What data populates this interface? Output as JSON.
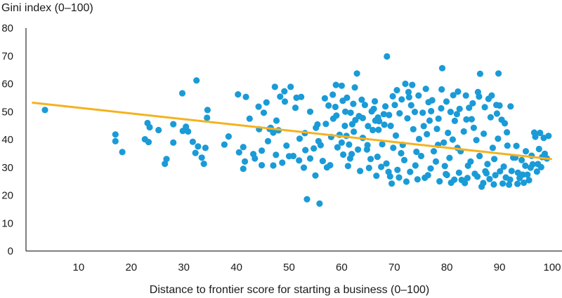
{
  "chart_data": {
    "type": "scatter",
    "title": "",
    "ylabel": "Gini index (0–100)",
    "xlabel": "Distance to frontier score for starting a business (0–100)",
    "xlim": [
      0,
      100
    ],
    "ylim": [
      0,
      80
    ],
    "xticks": [
      "10",
      "20",
      "30",
      "40",
      "50",
      "60",
      "70",
      "80",
      "90",
      "100"
    ],
    "yticks": [
      "0",
      "10",
      "20",
      "30",
      "40",
      "50",
      "60",
      "70",
      "80"
    ],
    "grid": false,
    "legend": "none",
    "series": [
      {
        "type": "scatter",
        "color": "#1a9bd7",
        "points": [
          [
            3.6,
            50.6
          ],
          [
            17.0,
            41.8
          ],
          [
            17.0,
            39.4
          ],
          [
            18.3,
            35.5
          ],
          [
            22.6,
            40.1
          ],
          [
            23.1,
            45.9
          ],
          [
            23.5,
            44.4
          ],
          [
            23.3,
            39.1
          ],
          [
            25.2,
            43.4
          ],
          [
            26.7,
            33.0
          ],
          [
            26.4,
            31.3
          ],
          [
            28.0,
            38.9
          ],
          [
            28.0,
            45.5
          ],
          [
            29.7,
            56.6
          ],
          [
            29.8,
            43.1
          ],
          [
            30.4,
            44.6
          ],
          [
            30.8,
            42.9
          ],
          [
            31.7,
            39.2
          ],
          [
            32.4,
            61.2
          ],
          [
            32.2,
            35.2
          ],
          [
            32.7,
            37.5
          ],
          [
            33.4,
            33.5
          ],
          [
            34.1,
            37.0
          ],
          [
            33.8,
            31.3
          ],
          [
            34.5,
            50.6
          ],
          [
            34.4,
            47.8
          ],
          [
            37.7,
            38.2
          ],
          [
            38.5,
            41.1
          ],
          [
            40.3,
            56.2
          ],
          [
            40.5,
            35.4
          ],
          [
            41.8,
            55.3
          ],
          [
            41.3,
            37.3
          ],
          [
            41.6,
            32.1
          ],
          [
            41.3,
            29.5
          ],
          [
            42.5,
            47.5
          ],
          [
            43.2,
            34.8
          ],
          [
            43.5,
            33.2
          ],
          [
            44.3,
            43.7
          ],
          [
            44.2,
            51.8
          ],
          [
            44.8,
            36.0
          ],
          [
            45.2,
            49.6
          ],
          [
            45.7,
            53.3
          ],
          [
            46.5,
            44.2
          ],
          [
            46.3,
            43.8
          ],
          [
            47.0,
            42.5
          ],
          [
            47.3,
            58.9
          ],
          [
            47.6,
            46.8
          ],
          [
            47.5,
            34.5
          ],
          [
            48.3,
            55.4
          ],
          [
            48.0,
            43.3
          ],
          [
            48.7,
            31.7
          ],
          [
            49.1,
            57.3
          ],
          [
            49.2,
            53.6
          ],
          [
            50.0,
            34.0
          ],
          [
            50.3,
            58.9
          ],
          [
            51.2,
            51.4
          ],
          [
            51.4,
            55.0
          ],
          [
            52.3,
            55.3
          ],
          [
            53.1,
            36.2
          ],
          [
            54.0,
            33.2
          ],
          [
            52.8,
            29.9
          ],
          [
            53.4,
            18.6
          ],
          [
            55.1,
            44.2
          ],
          [
            55.4,
            45.4
          ],
          [
            55.8,
            17.0
          ],
          [
            57.5,
            52.2
          ],
          [
            56.0,
            38.0
          ],
          [
            57.2,
            30.0
          ],
          [
            58.4,
            47.5
          ],
          [
            59.2,
            37.2
          ],
          [
            60.3,
            34.6
          ],
          [
            60.9,
            41.3
          ],
          [
            61.2,
            30.5
          ],
          [
            61.6,
            33.2
          ],
          [
            62.2,
            52.8
          ],
          [
            62.9,
            63.7
          ],
          [
            63.3,
            48.4
          ],
          [
            64.8,
            36.4
          ],
          [
            65.5,
            33.0
          ],
          [
            66.1,
            51.0
          ],
          [
            67.1,
            46.6
          ],
          [
            67.5,
            30.2
          ],
          [
            68.6,
            69.8
          ],
          [
            68.0,
            49.1
          ],
          [
            69.2,
            26.8
          ],
          [
            69.5,
            24.2
          ],
          [
            71.3,
            35.1
          ],
          [
            72.1,
            60.0
          ],
          [
            72.8,
            55.2
          ],
          [
            73.6,
            43.7
          ],
          [
            74.7,
            40.2
          ],
          [
            75.1,
            34.1
          ],
          [
            76.0,
            58.2
          ],
          [
            76.7,
            46.8
          ],
          [
            77.5,
            35.8
          ],
          [
            78.3,
            38.1
          ],
          [
            79.1,
            65.6
          ],
          [
            79.6,
            30.5
          ],
          [
            80.2,
            42.4
          ],
          [
            81.5,
            46.7
          ],
          [
            82.0,
            37.0
          ],
          [
            82.8,
            25.5
          ],
          [
            83.6,
            55.8
          ],
          [
            84.5,
            32.1
          ],
          [
            85.1,
            44.2
          ],
          [
            86.3,
            63.6
          ],
          [
            86.6,
            23.1
          ],
          [
            87.3,
            28.6
          ],
          [
            88.7,
            37.0
          ],
          [
            89.4,
            52.4
          ],
          [
            89.8,
            63.7
          ],
          [
            90.4,
            47.1
          ],
          [
            91.2,
            26.4
          ],
          [
            92.1,
            51.9
          ],
          [
            92.6,
            33.5
          ],
          [
            93.5,
            28.1
          ],
          [
            94.4,
            27.4
          ],
          [
            95.0,
            35.8
          ],
          [
            95.6,
            25.4
          ],
          [
            96.6,
            42.5
          ],
          [
            97.5,
            36.6
          ],
          [
            98.4,
            40.6
          ],
          [
            99.0,
            33.2
          ],
          [
            56.8,
            54.8
          ],
          [
            58.8,
            51.7
          ],
          [
            60.2,
            53.9
          ],
          [
            61.7,
            49.6
          ],
          [
            62.6,
            47.0
          ],
          [
            63.8,
            54.3
          ],
          [
            64.4,
            52.4
          ],
          [
            65.7,
            50.1
          ],
          [
            66.4,
            46.8
          ],
          [
            67.0,
            43.5
          ],
          [
            68.3,
            51.9
          ],
          [
            69.3,
            44.9
          ],
          [
            70.3,
            41.4
          ],
          [
            71.0,
            49.4
          ],
          [
            71.6,
            38.1
          ],
          [
            72.5,
            47.6
          ],
          [
            73.2,
            52.3
          ],
          [
            74.2,
            35.6
          ],
          [
            75.4,
            49.6
          ],
          [
            76.2,
            41.9
          ],
          [
            77.2,
            54.1
          ],
          [
            78.1,
            43.8
          ],
          [
            78.9,
            51.2
          ],
          [
            79.4,
            38.9
          ],
          [
            80.5,
            33.4
          ],
          [
            81.1,
            40.0
          ],
          [
            81.9,
            49.1
          ],
          [
            82.6,
            35.8
          ],
          [
            83.2,
            42.9
          ],
          [
            84.0,
            30.6
          ],
          [
            84.7,
            47.3
          ],
          [
            85.6,
            39.8
          ],
          [
            86.2,
            34.1
          ],
          [
            87.0,
            42.1
          ],
          [
            87.7,
            31.2
          ],
          [
            88.3,
            48.0
          ],
          [
            89.0,
            33.0
          ],
          [
            89.7,
            40.3
          ],
          [
            90.8,
            30.3
          ],
          [
            91.5,
            37.8
          ],
          [
            92.3,
            28.7
          ],
          [
            93.0,
            33.5
          ],
          [
            93.8,
            26.2
          ],
          [
            94.9,
            30.6
          ],
          [
            96.1,
            34.2
          ],
          [
            97.3,
            31.2
          ],
          [
            98.6,
            34.9
          ],
          [
            59.6,
            41.7
          ],
          [
            60.6,
            44.9
          ],
          [
            61.4,
            38.2
          ],
          [
            62.3,
            42.8
          ],
          [
            63.1,
            36.4
          ],
          [
            64.0,
            40.6
          ],
          [
            64.9,
            38.0
          ],
          [
            65.9,
            43.4
          ],
          [
            66.8,
            33.8
          ],
          [
            67.7,
            38.3
          ],
          [
            68.5,
            31.4
          ],
          [
            69.8,
            37.0
          ],
          [
            70.6,
            29.1
          ],
          [
            71.9,
            32.6
          ],
          [
            73.0,
            28.4
          ],
          [
            74.0,
            30.7
          ],
          [
            75.8,
            26.3
          ],
          [
            76.9,
            29.6
          ],
          [
            77.9,
            32.1
          ],
          [
            79.8,
            27.6
          ],
          [
            80.8,
            24.5
          ],
          [
            82.3,
            28.1
          ],
          [
            83.9,
            26.2
          ],
          [
            85.3,
            27.7
          ],
          [
            86.9,
            24.4
          ],
          [
            88.1,
            25.8
          ],
          [
            89.2,
            27.2
          ],
          [
            90.6,
            24.2
          ],
          [
            92.0,
            25.6
          ],
          [
            93.4,
            24.1
          ],
          [
            94.6,
            24.5
          ],
          [
            95.3,
            27.4
          ],
          [
            58.0,
            40.9
          ],
          [
            60.0,
            38.9
          ],
          [
            61.9,
            34.8
          ],
          [
            63.5,
            28.7
          ],
          [
            65.2,
            29.8
          ],
          [
            66.6,
            27.0
          ],
          [
            68.9,
            28.4
          ],
          [
            70.9,
            26.4
          ],
          [
            72.3,
            24.9
          ],
          [
            74.4,
            25.7
          ],
          [
            76.4,
            27.2
          ],
          [
            78.6,
            25.0
          ],
          [
            80.0,
            27.3
          ],
          [
            81.4,
            25.6
          ],
          [
            83.4,
            24.4
          ],
          [
            85.8,
            26.7
          ],
          [
            87.5,
            27.9
          ],
          [
            88.9,
            23.9
          ],
          [
            90.1,
            28.6
          ],
          [
            91.8,
            23.8
          ],
          [
            96.3,
            31.1
          ],
          [
            97.9,
            30.1
          ],
          [
            66.9,
            47.9
          ],
          [
            68.1,
            45.3
          ],
          [
            69.0,
            48.8
          ],
          [
            70.1,
            52.4
          ],
          [
            71.4,
            54.4
          ],
          [
            72.7,
            57.0
          ],
          [
            73.9,
            49.9
          ],
          [
            75.6,
            44.8
          ],
          [
            77.0,
            50.2
          ],
          [
            78.4,
            47.5
          ],
          [
            79.9,
            53.6
          ],
          [
            81.2,
            55.9
          ],
          [
            82.4,
            51.0
          ],
          [
            83.7,
            47.2
          ],
          [
            84.9,
            53.0
          ],
          [
            86.1,
            55.4
          ],
          [
            87.2,
            51.6
          ],
          [
            88.5,
            55.8
          ],
          [
            90.0,
            52.2
          ],
          [
            91.0,
            45.8
          ],
          [
            50.8,
            34.1
          ],
          [
            52.0,
            40.3
          ],
          [
            53.0,
            42.3
          ],
          [
            54.7,
            36.8
          ],
          [
            55.6,
            39.4
          ],
          [
            57.0,
            45.6
          ],
          [
            46.0,
            39.4
          ],
          [
            44.8,
            30.8
          ],
          [
            47.0,
            30.7
          ],
          [
            49.5,
            37.8
          ],
          [
            51.9,
            32.5
          ],
          [
            54.0,
            50.0
          ],
          [
            55.0,
            27.1
          ],
          [
            56.4,
            32.3
          ],
          [
            57.8,
            30.8
          ],
          [
            58.9,
            59.6
          ],
          [
            60.0,
            59.3
          ],
          [
            58.3,
            56.1
          ],
          [
            61.0,
            55.0
          ],
          [
            62.5,
            58.7
          ],
          [
            59.0,
            48.6
          ],
          [
            60.7,
            50.0
          ],
          [
            62.0,
            45.5
          ],
          [
            64.0,
            47.7
          ],
          [
            65.0,
            44.8
          ],
          [
            66.3,
            53.7
          ],
          [
            69.7,
            55.5
          ],
          [
            70.5,
            57.7
          ],
          [
            73.4,
            59.6
          ],
          [
            74.6,
            55.8
          ],
          [
            76.5,
            53.4
          ],
          [
            79.0,
            58.0
          ],
          [
            80.7,
            49.9
          ],
          [
            82.1,
            57.2
          ],
          [
            84.2,
            51.4
          ],
          [
            85.9,
            57.0
          ],
          [
            87.9,
            54.6
          ],
          [
            89.5,
            49.3
          ],
          [
            91.4,
            42.6
          ],
          [
            93.2,
            37.7
          ],
          [
            94.2,
            32.6
          ],
          [
            95.9,
            29.9
          ],
          [
            97.1,
            28.5
          ],
          [
            98.1,
            33.7
          ],
          [
            96.8,
            41.0
          ],
          [
            97.7,
            42.4
          ],
          [
            99.3,
            41.3
          ]
        ]
      },
      {
        "type": "line",
        "name": "",
        "color": "#f5b21e",
        "points": [
          [
            1.3,
            53.2
          ],
          [
            99.8,
            33.0
          ]
        ]
      }
    ]
  }
}
